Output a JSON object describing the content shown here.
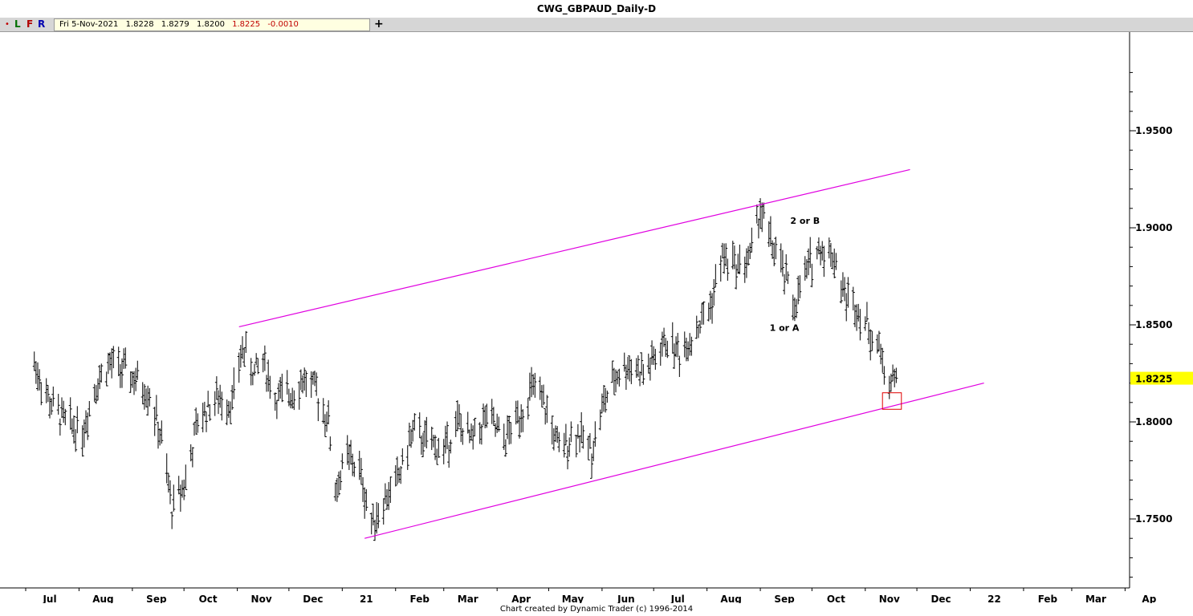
{
  "window": {
    "title": "CWG_GBPAUD_Daily-D"
  },
  "toolbar": {
    "mode_dot": "•",
    "mode_l": "L",
    "mode_f": "F",
    "mode_r": "R",
    "plus_label": "+",
    "date": "Fri 5-Nov-2021",
    "open": "1.8228",
    "high": "1.8279",
    "low": "1.8200",
    "close": "1.8225",
    "change": "-0.0010"
  },
  "footer": {
    "credit": "Chart created by Dynamic Trader  (c) 1996-2014"
  },
  "colors": {
    "channel": "#e000e0",
    "price_highlight": "#ffff00",
    "target_box": "#e00000",
    "bars": "#000000"
  },
  "chart_data": {
    "type": "ohlc",
    "title": "CWG_GBPAUD_Daily-D",
    "ylim": [
      1.706,
      1.998
    ],
    "x_tick_labels": [
      "Jul",
      "Aug",
      "Sep",
      "Oct",
      "Nov",
      "Dec",
      "21",
      "Feb",
      "Mar",
      "Apr",
      "May",
      "Jun",
      "Jul",
      "Aug",
      "Sep",
      "Oct",
      "Nov",
      "Dec",
      "22",
      "Feb",
      "Mar",
      "Ap"
    ],
    "y_ticks": [
      "1.9500",
      "1.9000",
      "1.8500",
      "1.8000",
      "1.7500"
    ],
    "last_price_label": "1.8225",
    "last_price": 1.8225,
    "waypoints": [
      [
        "2020-06-22",
        1.83
      ],
      [
        "2020-07-01",
        1.81
      ],
      [
        "2020-07-10",
        1.8
      ],
      [
        "2020-07-20",
        1.795
      ],
      [
        "2020-07-28",
        1.82
      ],
      [
        "2020-08-05",
        1.83
      ],
      [
        "2020-08-15",
        1.825
      ],
      [
        "2020-08-28",
        1.815
      ],
      [
        "2020-09-04",
        1.79
      ],
      [
        "2020-09-10",
        1.755
      ],
      [
        "2020-09-18",
        1.77
      ],
      [
        "2020-09-25",
        1.8
      ],
      [
        "2020-10-05",
        1.812
      ],
      [
        "2020-10-15",
        1.81
      ],
      [
        "2020-10-21",
        1.838
      ],
      [
        "2020-10-28",
        1.825
      ],
      [
        "2020-11-02",
        1.832
      ],
      [
        "2020-11-09",
        1.812
      ],
      [
        "2020-11-18",
        1.815
      ],
      [
        "2020-11-26",
        1.822
      ],
      [
        "2020-12-03",
        1.815
      ],
      [
        "2020-12-10",
        1.8
      ],
      [
        "2020-12-14",
        1.765
      ],
      [
        "2020-12-21",
        1.782
      ],
      [
        "2020-12-28",
        1.775
      ],
      [
        "2021-01-04",
        1.748
      ],
      [
        "2021-01-12",
        1.76
      ],
      [
        "2021-01-20",
        1.772
      ],
      [
        "2021-01-28",
        1.795
      ],
      [
        "2021-02-05",
        1.79
      ],
      [
        "2021-02-15",
        1.785
      ],
      [
        "2021-02-23",
        1.8
      ],
      [
        "2021-03-03",
        1.79
      ],
      [
        "2021-03-12",
        1.803
      ],
      [
        "2021-03-22",
        1.79
      ],
      [
        "2021-04-01",
        1.805
      ],
      [
        "2021-04-08",
        1.818
      ],
      [
        "2021-04-16",
        1.805
      ],
      [
        "2021-04-23",
        1.785
      ],
      [
        "2021-05-03",
        1.795
      ],
      [
        "2021-05-12",
        1.785
      ],
      [
        "2021-05-19",
        1.81
      ],
      [
        "2021-05-27",
        1.825
      ],
      [
        "2021-06-04",
        1.83
      ],
      [
        "2021-06-11",
        1.825
      ],
      [
        "2021-06-18",
        1.833
      ],
      [
        "2021-06-25",
        1.842
      ],
      [
        "2021-07-02",
        1.835
      ],
      [
        "2021-07-12",
        1.848
      ],
      [
        "2021-07-20",
        1.86
      ],
      [
        "2021-07-27",
        1.885
      ],
      [
        "2021-08-05",
        1.88
      ],
      [
        "2021-08-12",
        1.885
      ],
      [
        "2021-08-18",
        1.91
      ],
      [
        "2021-08-23",
        1.895
      ],
      [
        "2021-08-30",
        1.88
      ],
      [
        "2021-09-07",
        1.86
      ],
      [
        "2021-09-15",
        1.88
      ],
      [
        "2021-09-22",
        1.89
      ],
      [
        "2021-09-30",
        1.885
      ],
      [
        "2021-10-06",
        1.865
      ],
      [
        "2021-10-13",
        1.86
      ],
      [
        "2021-10-20",
        1.848
      ],
      [
        "2021-10-27",
        1.835
      ],
      [
        "2021-11-01",
        1.82
      ],
      [
        "2021-11-05",
        1.8225
      ]
    ],
    "last_bar": {
      "date": "2021-11-05",
      "open": 1.8228,
      "high": 1.8279,
      "low": 1.82,
      "close": 1.8225
    },
    "channel_lines": [
      {
        "from": [
          "2020-10-19",
          1.849
        ],
        "to": [
          "2021-11-13",
          1.93
        ]
      },
      {
        "from": [
          "2020-12-31",
          1.74
        ],
        "to": [
          "2021-12-26",
          1.82
        ]
      }
    ],
    "annotations": [
      {
        "text": "1 or A",
        "date": "2021-09-01",
        "price": 1.847
      },
      {
        "text": "2 or B",
        "date": "2021-09-13",
        "price": 1.902
      }
    ],
    "target_box": {
      "date_from": "2021-10-28",
      "date_to": "2021-11-08",
      "price_high": 1.815,
      "price_low": 1.8065
    }
  }
}
